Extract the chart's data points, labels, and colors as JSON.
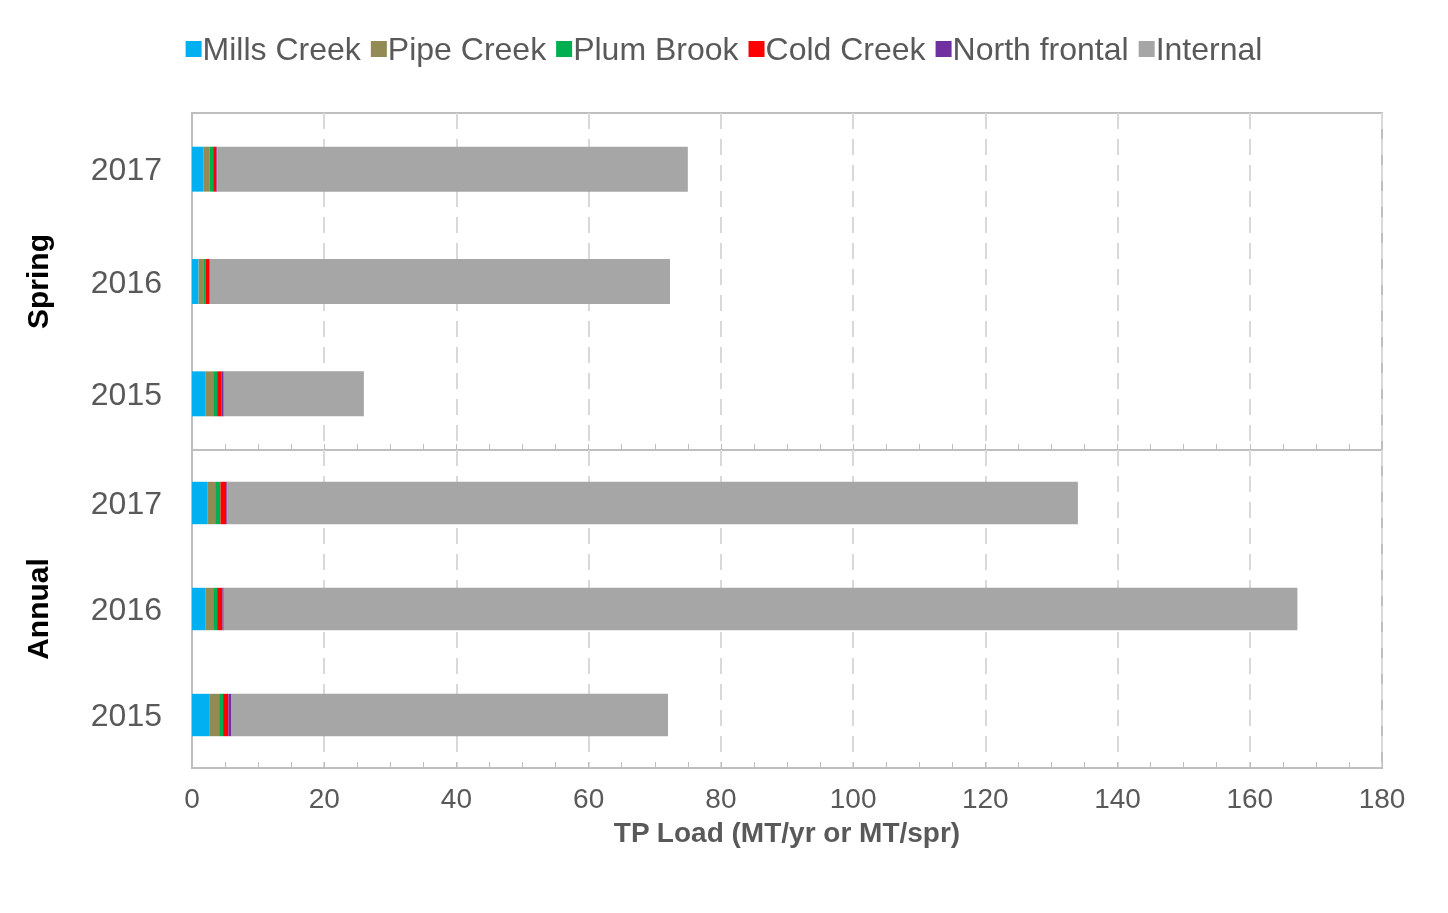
{
  "chart_data": [
    {
      "type": "bar",
      "orientation": "horizontal",
      "stacked": true,
      "ylabel": "Spring",
      "categories": [
        "2017",
        "2016",
        "2015"
      ],
      "series": [
        {
          "name": "Mills Creek",
          "color": "#00b0f0",
          "values": [
            1.7,
            1.0,
            2.0
          ]
        },
        {
          "name": "Pipe Creek",
          "color": "#948a54",
          "values": [
            1.0,
            0.7,
            1.2
          ]
        },
        {
          "name": "Plum Brook",
          "color": "#00b050",
          "values": [
            0.5,
            0.4,
            0.6
          ]
        },
        {
          "name": "Cold Creek",
          "color": "#ff0000",
          "values": [
            0.5,
            0.5,
            0.7
          ]
        },
        {
          "name": "North frontal",
          "color": "#7030a0",
          "values": [
            0.1,
            0.1,
            0.3
          ]
        },
        {
          "name": "Internal",
          "color": "#a6a6a6",
          "values": [
            71.2,
            69.6,
            21.2
          ]
        }
      ],
      "xlim": [
        0,
        180
      ],
      "xticks": [
        0,
        {
          "value": 5,
          "label": null
        },
        {
          "value": 10,
          "label": null
        },
        {
          "value": 15,
          "label": null
        },
        20,
        {
          "value": 25,
          "label": null
        },
        {
          "value": 30,
          "label": null
        },
        {
          "value": 35,
          "label": null
        },
        40,
        {
          "value": 45,
          "label": null
        },
        {
          "value": 50,
          "label": null
        },
        {
          "value": 55,
          "label": null
        },
        60,
        {
          "value": 65,
          "label": null
        },
        {
          "value": 70,
          "label": null
        },
        {
          "value": 75,
          "label": null
        },
        80,
        {
          "value": 85,
          "label": null
        },
        {
          "value": 90,
          "label": null
        },
        {
          "value": 95,
          "label": null
        },
        100,
        {
          "value": 105,
          "label": null
        },
        {
          "value": 110,
          "label": null
        },
        {
          "value": 115,
          "label": null
        },
        120,
        {
          "value": 125,
          "label": null
        },
        {
          "value": 130,
          "label": null
        },
        {
          "value": 135,
          "label": null
        },
        140,
        {
          "value": 145,
          "label": null
        },
        {
          "value": 150,
          "label": null
        },
        {
          "value": 155,
          "label": null
        },
        160,
        {
          "value": 165,
          "label": null
        },
        {
          "value": 170,
          "label": null
        },
        {
          "value": 175,
          "label": null
        },
        180
      ],
      "grid": "x",
      "legend": "top",
      "tick_labels": "y"
    },
    {
      "type": "bar",
      "orientation": "horizontal",
      "stacked": true,
      "ylabel": "Annual",
      "xlabel": "TP Load (MT/yr or MT/spr)",
      "categories": [
        "2017",
        "2016",
        "2015"
      ],
      "series": [
        {
          "color": "#00b0f0",
          "values": [
            2.3,
            2.0,
            2.7
          ]
        },
        {
          "color": "#948a54",
          "values": [
            1.2,
            1.2,
            1.4
          ]
        },
        {
          "color": "#00b050",
          "values": [
            0.8,
            0.6,
            0.6
          ]
        },
        {
          "color": "#ff0000",
          "values": [
            0.9,
            0.8,
            0.8
          ]
        },
        {
          "color": "#7030a0",
          "values": [
            0.1,
            0.2,
            0.4
          ]
        },
        {
          "color": "#a6a6a6",
          "values": [
            128.7,
            162.4,
            66.1
          ]
        }
      ],
      "xlim": [
        0,
        180
      ],
      "xticks": [
        0,
        {
          "value": 5,
          "label": null
        },
        {
          "value": 10,
          "label": null
        },
        {
          "value": 15,
          "label": null
        },
        20,
        {
          "value": 25,
          "label": null
        },
        {
          "value": 30,
          "label": null
        },
        {
          "value": 35,
          "label": null
        },
        40,
        {
          "value": 45,
          "label": null
        },
        {
          "value": 50,
          "label": null
        },
        {
          "value": 55,
          "label": null
        },
        60,
        {
          "value": 65,
          "label": null
        },
        {
          "value": 70,
          "label": null
        },
        {
          "value": 75,
          "label": null
        },
        80,
        {
          "value": 85,
          "label": null
        },
        {
          "value": 90,
          "label": null
        },
        {
          "value": 95,
          "label": null
        },
        100,
        {
          "value": 105,
          "label": null
        },
        {
          "value": 110,
          "label": null
        },
        {
          "value": 115,
          "label": null
        },
        120,
        {
          "value": 125,
          "label": null
        },
        {
          "value": 130,
          "label": null
        },
        {
          "value": 135,
          "label": null
        },
        140,
        {
          "value": 145,
          "label": null
        },
        {
          "value": 150,
          "label": null
        },
        {
          "value": 155,
          "label": null
        },
        160,
        {
          "value": 165,
          "label": null
        },
        {
          "value": 170,
          "label": null
        },
        {
          "value": 175,
          "label": null
        },
        180
      ],
      "grid": "x"
    }
  ]
}
